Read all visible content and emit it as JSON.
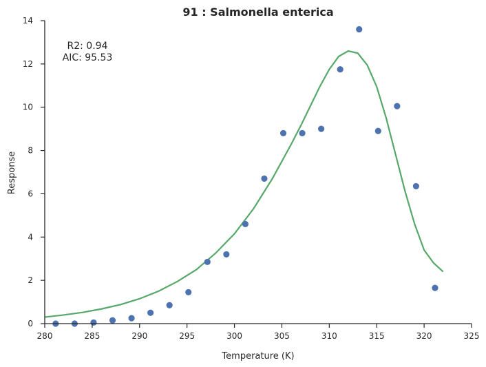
{
  "chart_data": {
    "type": "scatter",
    "title": "91 : Salmonella enterica",
    "xlabel": "Temperature (K)",
    "ylabel": "Response",
    "xlim": [
      280,
      325
    ],
    "ylim": [
      0,
      14
    ],
    "xticks": [
      280,
      285,
      290,
      295,
      300,
      305,
      310,
      315,
      320,
      325
    ],
    "yticks": [
      0,
      2,
      4,
      6,
      8,
      10,
      12,
      14
    ],
    "grid": false,
    "annotations": [
      "R2: 0.94",
      "AIC: 95.53"
    ],
    "colors": {
      "points": "#4c72b0",
      "fit": "#55a868"
    },
    "series": [
      {
        "kind": "scatter",
        "x": [
          281.15,
          283.15,
          285.15,
          287.15,
          289.15,
          291.15,
          293.15,
          295.15,
          297.15,
          299.15,
          301.15,
          303.15,
          305.15,
          307.15,
          309.15,
          311.15,
          313.15,
          315.15,
          317.15,
          319.15,
          321.15
        ],
        "y": [
          0.0,
          0.0,
          0.05,
          0.15,
          0.25,
          0.5,
          0.85,
          1.45,
          2.85,
          3.2,
          4.6,
          6.7,
          8.8,
          8.8,
          9.0,
          11.75,
          13.6,
          8.9,
          10.05,
          6.35,
          1.65
        ]
      },
      {
        "kind": "line",
        "x": [
          280,
          282,
          284,
          286,
          288,
          290,
          292,
          294,
          296,
          298,
          300,
          302,
          304,
          306,
          307,
          308,
          309,
          310,
          311,
          312,
          313,
          314,
          315,
          316,
          317,
          318,
          319,
          320,
          321,
          322
        ],
        "y": [
          0.3,
          0.4,
          0.52,
          0.68,
          0.88,
          1.15,
          1.5,
          1.95,
          2.5,
          3.25,
          4.15,
          5.3,
          6.7,
          8.3,
          9.15,
          10.05,
          10.95,
          11.75,
          12.35,
          12.6,
          12.5,
          11.95,
          10.95,
          9.5,
          7.8,
          6.1,
          4.6,
          3.4,
          2.8,
          2.4
        ]
      }
    ]
  }
}
